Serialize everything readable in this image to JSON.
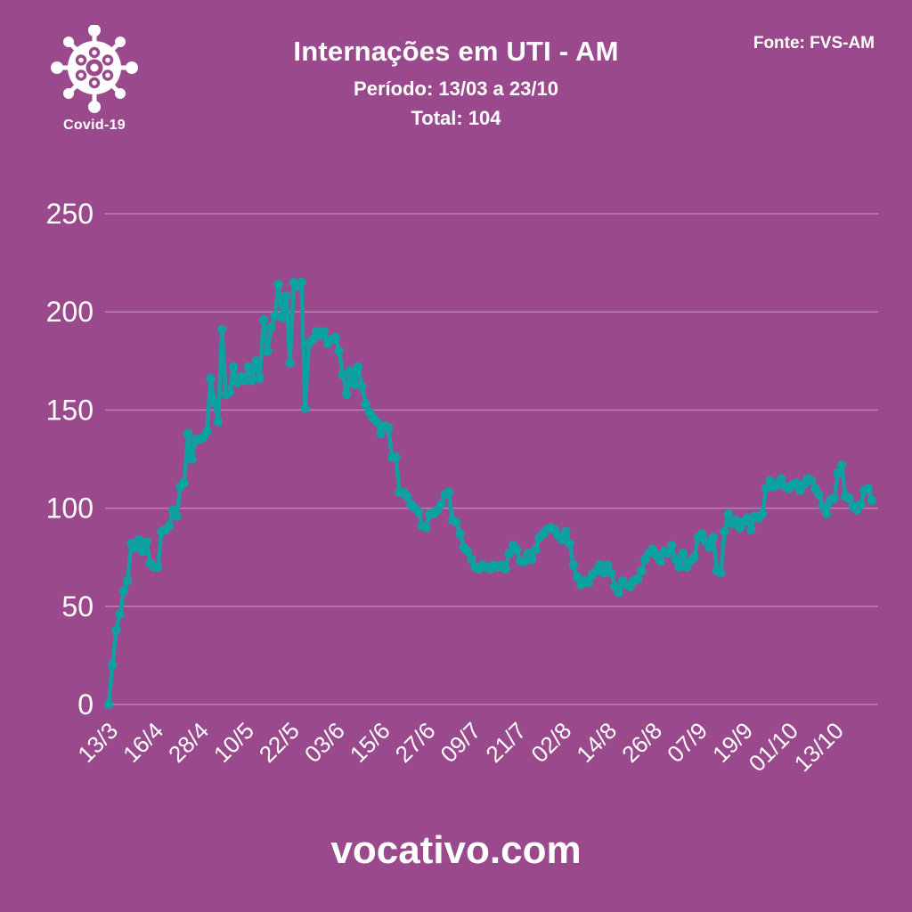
{
  "colors": {
    "background": "#9a4a8c",
    "line": "#0da2a2",
    "text": "#ffffff",
    "grid": "rgba(255,243,251,0.32)"
  },
  "badge": {
    "icon": "coronavirus-icon",
    "label": "Covid-19"
  },
  "header": {
    "title": "Internações em UTI - AM",
    "subtitle": "Período: 13/03 a 23/10",
    "total": "Total: 104",
    "source": "Fonte: FVS-AM"
  },
  "footer": {
    "site": "vocativo.com"
  },
  "chart_data": {
    "type": "line",
    "title": "Internações em UTI - AM",
    "xlabel": "",
    "ylabel": "",
    "legend": "none",
    "grid": "horizontal",
    "marker": "circle",
    "ylim": [
      0,
      250
    ],
    "y_ticks": [
      0,
      50,
      100,
      150,
      200,
      250
    ],
    "x_tick_every": 12,
    "x_tick_labels": [
      "13/3",
      "16/4",
      "28/4",
      "10/5",
      "22/5",
      "03/6",
      "15/6",
      "27/6",
      "09/7",
      "21/7",
      "02/8",
      "14/8",
      "26/8",
      "07/9",
      "19/9",
      "01/10",
      "13/10"
    ],
    "series": [
      {
        "name": "Internações em UTI",
        "values": [
          0,
          20,
          38,
          46,
          58,
          63,
          82,
          80,
          84,
          78,
          83,
          72,
          70,
          70,
          88,
          89,
          91,
          99,
          96,
          111,
          113,
          138,
          125,
          135,
          135,
          136,
          139,
          166,
          154,
          144,
          191,
          158,
          159,
          172,
          164,
          167,
          165,
          172,
          165,
          175,
          166,
          196,
          180,
          192,
          198,
          214,
          197,
          208,
          174,
          215,
          213,
          215,
          151,
          184,
          186,
          190,
          188,
          190,
          184,
          186,
          187,
          180,
          168,
          158,
          170,
          163,
          172,
          162,
          153,
          149,
          146,
          144,
          138,
          142,
          141,
          126,
          126,
          108,
          108,
          106,
          102,
          100,
          98,
          91,
          90,
          97,
          97,
          99,
          102,
          107,
          108,
          94,
          93,
          87,
          80,
          78,
          74,
          70,
          69,
          71,
          70,
          69,
          71,
          70,
          71,
          69,
          77,
          81,
          79,
          73,
          73,
          77,
          74,
          79,
          85,
          87,
          89,
          90,
          89,
          86,
          84,
          88,
          82,
          71,
          65,
          61,
          63,
          62,
          66,
          68,
          71,
          67,
          71,
          67,
          60,
          57,
          63,
          61,
          60,
          63,
          64,
          68,
          74,
          77,
          79,
          76,
          73,
          78,
          77,
          81,
          74,
          70,
          77,
          70,
          73,
          75,
          85,
          87,
          83,
          80,
          85,
          68,
          67,
          88,
          97,
          92,
          94,
          90,
          93,
          95,
          89,
          96,
          95,
          97,
          110,
          114,
          111,
          112,
          115,
          111,
          110,
          112,
          113,
          109,
          112,
          115,
          114,
          110,
          107,
          101,
          97,
          104,
          105,
          118,
          122,
          106,
          105,
          101,
          99,
          102,
          109,
          110,
          104
        ]
      }
    ]
  }
}
